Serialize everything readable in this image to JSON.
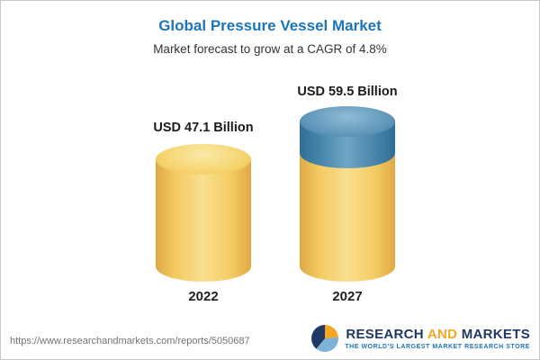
{
  "chart_data": {
    "type": "bar",
    "style": "3d-cylinder",
    "title": "Global Pressure Vessel Market",
    "subtitle": "Market forecast to grow at a CAGR of 4.8%",
    "categories": [
      "2022",
      "2027"
    ],
    "values": [
      47.1,
      59.5
    ],
    "unit": "USD Billion",
    "value_labels": [
      "USD 47.1 Billion",
      "USD 59.5 Billion"
    ],
    "cagr_percent": 4.8,
    "colors": {
      "base_segment": "#f3ca61",
      "growth_segment": "#4c89ae",
      "title": "#1b75bb"
    },
    "legend": "none",
    "grid": false,
    "xlabel": "",
    "ylabel": ""
  },
  "footer": {
    "url": "https://www.researchandmarkets.com/reports/5050687",
    "logo": {
      "word_research": "RESEARCH",
      "word_and": "AND",
      "word_markets": "MARKETS",
      "tagline": "THE WORLD'S LARGEST MARKET RESEARCH STORE"
    }
  }
}
